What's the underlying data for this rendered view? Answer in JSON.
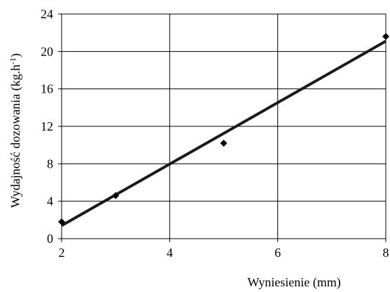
{
  "chart_data": {
    "type": "scatter",
    "xlabel": "Wyniesienie (mm)",
    "ylabel": "Wydajność dozowania (kg.h",
    "ylabel_sup": "-1",
    "ylabel_close": ")",
    "xlim": [
      2,
      8
    ],
    "ylim": [
      0,
      24
    ],
    "xticks": [
      2,
      4,
      6,
      8
    ],
    "yticks": [
      0,
      4,
      8,
      12,
      16,
      20,
      24
    ],
    "grid": true,
    "points": [
      {
        "x": 2,
        "y": 1.8
      },
      {
        "x": 3,
        "y": 4.6
      },
      {
        "x": 5,
        "y": 10.2
      },
      {
        "x": 8,
        "y": 21.6
      }
    ],
    "trendline": {
      "x": [
        2,
        8
      ],
      "y": [
        1.4,
        21.1
      ]
    },
    "colors": {
      "marker": "#000000",
      "line": "#1a1a1a",
      "grid": "#000000"
    }
  }
}
